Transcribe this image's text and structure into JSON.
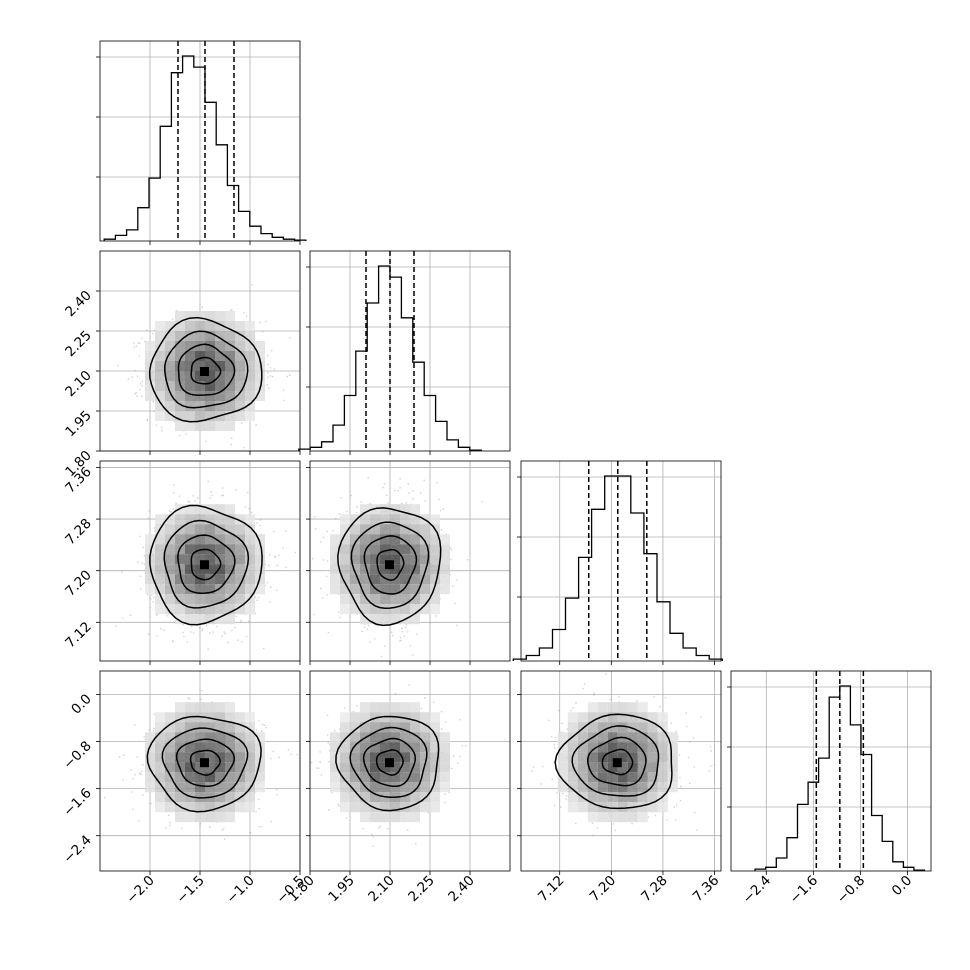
{
  "chart_data": {
    "type": "corner",
    "title": "",
    "parameters": [
      {
        "range": [
          -2.5,
          -0.5
        ],
        "ticks": [
          {
            "value": -2.0,
            "label": "−2.0"
          },
          {
            "value": -1.5,
            "label": "−1.5"
          },
          {
            "value": -1.0,
            "label": "−1.0"
          },
          {
            "value": -0.5,
            "label": "−0.5"
          }
        ],
        "mean": -1.45,
        "sigma": 0.28,
        "quantiles": [
          -1.72,
          -1.45,
          -1.16
        ]
      },
      {
        "range": [
          1.8,
          2.55
        ],
        "ticks": [
          {
            "value": 1.8,
            "label": "1.80"
          },
          {
            "value": 1.95,
            "label": "1.95"
          },
          {
            "value": 2.1,
            "label": "2.10"
          },
          {
            "value": 2.25,
            "label": "2.25"
          },
          {
            "value": 2.4,
            "label": "2.40"
          }
        ],
        "mean": 2.1,
        "sigma": 0.095,
        "quantiles": [
          2.01,
          2.1,
          2.19
        ]
      },
      {
        "range": [
          7.06,
          7.37
        ],
        "ticks": [
          {
            "value": 7.12,
            "label": "7.12"
          },
          {
            "value": 7.2,
            "label": "7.20"
          },
          {
            "value": 7.28,
            "label": "7.28"
          },
          {
            "value": 7.36,
            "label": "7.36"
          }
        ],
        "mean": 7.21,
        "sigma": 0.045,
        "quantiles": [
          7.165,
          7.21,
          7.255
        ]
      },
      {
        "range": [
          -3.0,
          0.4
        ],
        "ticks": [
          {
            "value": -2.4,
            "label": "−2.4"
          },
          {
            "value": -1.6,
            "label": "−1.6"
          },
          {
            "value": -0.8,
            "label": "−0.8"
          },
          {
            "value": 0.0,
            "label": "0.0"
          }
        ],
        "mean": -1.15,
        "sigma": 0.4,
        "quantiles": [
          -1.55,
          -1.15,
          -0.75
        ]
      }
    ],
    "histograms": [
      [
        1,
        3,
        6,
        18,
        34,
        62,
        91,
        100,
        94,
        75,
        52,
        30,
        16,
        8,
        4,
        2,
        1,
        0.5
      ],
      [
        1,
        2,
        5,
        14,
        30,
        54,
        80,
        100,
        94,
        72,
        48,
        30,
        16,
        6,
        2,
        0.5
      ],
      [
        1,
        3,
        7,
        17,
        34,
        56,
        82,
        100,
        100,
        80,
        58,
        32,
        15,
        7,
        3,
        1
      ],
      [
        1,
        2,
        7,
        18,
        36,
        48,
        61,
        94,
        100,
        79,
        63,
        30,
        16,
        5,
        2,
        0.5
      ]
    ],
    "grid": true,
    "point_color": "#000000",
    "contour_levels": [
      "39%",
      "86%",
      "99%"
    ]
  }
}
